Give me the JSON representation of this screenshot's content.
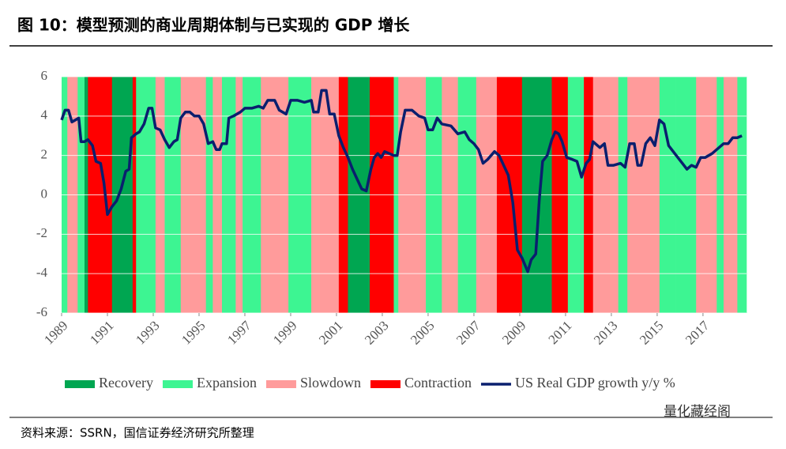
{
  "chart_data": {
    "type": "regime_line",
    "title": "图 10：模型预测的商业周期体制与已实现的 GDP 增长",
    "source": "资料来源：SSRN，国信证券经济研究所整理",
    "watermark": "量化藏经阁",
    "xlim": [
      1989,
      2018.9
    ],
    "xticks": [
      1989,
      1991,
      1993,
      1995,
      1997,
      1999,
      2001,
      2003,
      2005,
      2007,
      2009,
      2011,
      2013,
      2015,
      2017
    ],
    "ylim": [
      -6,
      6
    ],
    "yticks": [
      6,
      4,
      2,
      0,
      -2,
      -4,
      -6
    ],
    "grid": true,
    "regimes": [
      {
        "name": "Recovery",
        "color": "#00a651"
      },
      {
        "name": "Expansion",
        "color": "#3df592"
      },
      {
        "name": "Slowdown",
        "color": "#ff9b9b"
      },
      {
        "name": "Contraction",
        "color": "#ff0000"
      }
    ],
    "periods": [
      {
        "start": 1989.0,
        "end": 1989.25,
        "regime": "Expansion"
      },
      {
        "start": 1989.25,
        "end": 1989.7,
        "regime": "Slowdown"
      },
      {
        "start": 1989.7,
        "end": 1990.0,
        "regime": "Expansion"
      },
      {
        "start": 1990.0,
        "end": 1990.15,
        "regime": "Recovery"
      },
      {
        "start": 1990.15,
        "end": 1991.2,
        "regime": "Contraction"
      },
      {
        "start": 1991.2,
        "end": 1992.1,
        "regime": "Recovery"
      },
      {
        "start": 1992.1,
        "end": 1992.25,
        "regime": "Contraction"
      },
      {
        "start": 1992.25,
        "end": 1993.1,
        "regime": "Expansion"
      },
      {
        "start": 1993.1,
        "end": 1993.5,
        "regime": "Slowdown"
      },
      {
        "start": 1993.5,
        "end": 1994.2,
        "regime": "Expansion"
      },
      {
        "start": 1994.2,
        "end": 1995.3,
        "regime": "Slowdown"
      },
      {
        "start": 1995.3,
        "end": 1995.6,
        "regime": "Expansion"
      },
      {
        "start": 1995.6,
        "end": 1996.0,
        "regime": "Slowdown"
      },
      {
        "start": 1996.0,
        "end": 1996.6,
        "regime": "Expansion"
      },
      {
        "start": 1996.6,
        "end": 1996.9,
        "regime": "Slowdown"
      },
      {
        "start": 1996.9,
        "end": 1997.7,
        "regime": "Expansion"
      },
      {
        "start": 1997.7,
        "end": 1998.9,
        "regime": "Slowdown"
      },
      {
        "start": 1998.9,
        "end": 1999.9,
        "regime": "Expansion"
      },
      {
        "start": 1999.9,
        "end": 2001.1,
        "regime": "Slowdown"
      },
      {
        "start": 2001.1,
        "end": 2001.5,
        "regime": "Contraction"
      },
      {
        "start": 2001.5,
        "end": 2002.45,
        "regime": "Recovery"
      },
      {
        "start": 2002.45,
        "end": 2003.5,
        "regime": "Contraction"
      },
      {
        "start": 2003.5,
        "end": 2003.7,
        "regime": "Expansion"
      },
      {
        "start": 2003.7,
        "end": 2004.9,
        "regime": "Slowdown"
      },
      {
        "start": 2004.9,
        "end": 2005.6,
        "regime": "Expansion"
      },
      {
        "start": 2005.6,
        "end": 2006.3,
        "regime": "Slowdown"
      },
      {
        "start": 2006.3,
        "end": 2007.1,
        "regime": "Expansion"
      },
      {
        "start": 2007.1,
        "end": 2008.0,
        "regime": "Slowdown"
      },
      {
        "start": 2008.0,
        "end": 2009.1,
        "regime": "Contraction"
      },
      {
        "start": 2009.1,
        "end": 2010.4,
        "regime": "Recovery"
      },
      {
        "start": 2010.4,
        "end": 2011.1,
        "regime": "Contraction"
      },
      {
        "start": 2011.1,
        "end": 2011.8,
        "regime": "Expansion"
      },
      {
        "start": 2011.8,
        "end": 2012.2,
        "regime": "Contraction"
      },
      {
        "start": 2012.2,
        "end": 2013.3,
        "regime": "Slowdown"
      },
      {
        "start": 2013.3,
        "end": 2013.7,
        "regime": "Expansion"
      },
      {
        "start": 2013.7,
        "end": 2015.1,
        "regime": "Slowdown"
      },
      {
        "start": 2015.1,
        "end": 2015.8,
        "regime": "Expansion"
      },
      {
        "start": 2015.8,
        "end": 2016.7,
        "regime": "Expansion"
      },
      {
        "start": 2016.7,
        "end": 2017.6,
        "regime": "Slowdown"
      },
      {
        "start": 2017.6,
        "end": 2017.9,
        "regime": "Expansion"
      },
      {
        "start": 2017.9,
        "end": 2018.5,
        "regime": "Slowdown"
      },
      {
        "start": 2018.5,
        "end": 2018.9,
        "regime": "Expansion"
      }
    ],
    "series": [
      {
        "name": "US Real GDP growth y/y %",
        "color": "#0a1f6e",
        "x": [
          1989.0,
          1989.15,
          1989.3,
          1989.45,
          1989.6,
          1989.75,
          1989.85,
          1990.0,
          1990.15,
          1990.35,
          1990.5,
          1990.7,
          1990.85,
          1991.0,
          1991.2,
          1991.4,
          1991.6,
          1991.8,
          1991.95,
          1992.05,
          1992.25,
          1992.4,
          1992.6,
          1992.8,
          1992.95,
          1993.1,
          1993.3,
          1993.5,
          1993.7,
          1993.9,
          1994.05,
          1994.2,
          1994.4,
          1994.6,
          1994.8,
          1995.0,
          1995.2,
          1995.4,
          1995.6,
          1995.75,
          1995.9,
          1996.0,
          1996.2,
          1996.3,
          1996.5,
          1996.8,
          1997.0,
          1997.3,
          1997.6,
          1997.8,
          1998.0,
          1998.3,
          1998.5,
          1998.8,
          1999.0,
          1999.3,
          1999.6,
          1999.9,
          2000.0,
          2000.2,
          2000.35,
          2000.55,
          2000.7,
          2000.9,
          2001.1,
          2001.3,
          2001.5,
          2001.7,
          2001.9,
          2002.1,
          2002.3,
          2002.5,
          2002.65,
          2002.8,
          2002.95,
          2003.1,
          2003.3,
          2003.5,
          2003.65,
          2003.8,
          2004.0,
          2004.3,
          2004.6,
          2004.85,
          2005.0,
          2005.2,
          2005.4,
          2005.6,
          2006.0,
          2006.3,
          2006.6,
          2006.8,
          2007.0,
          2007.2,
          2007.4,
          2007.6,
          2007.9,
          2008.1,
          2008.3,
          2008.5,
          2008.7,
          2008.9,
          2009.1,
          2009.35,
          2009.5,
          2009.7,
          2009.85,
          2010.0,
          2010.2,
          2010.4,
          2010.55,
          2010.7,
          2010.85,
          2011.05,
          2011.3,
          2011.5,
          2011.7,
          2011.9,
          2012.05,
          2012.2,
          2012.5,
          2012.7,
          2012.85,
          2013.1,
          2013.4,
          2013.6,
          2013.8,
          2014.0,
          2014.15,
          2014.3,
          2014.5,
          2014.7,
          2014.9,
          2015.1,
          2015.3,
          2015.5,
          2015.7,
          2015.9,
          2016.1,
          2016.3,
          2016.5,
          2016.7,
          2016.9,
          2017.1,
          2017.4,
          2017.7,
          2017.9,
          2018.1,
          2018.3,
          2018.5,
          2018.7
        ],
        "values": [
          3.8,
          4.3,
          4.3,
          3.7,
          3.8,
          3.9,
          2.7,
          2.7,
          2.8,
          2.5,
          1.7,
          1.6,
          0.6,
          -1.0,
          -0.6,
          -0.3,
          0.3,
          1.2,
          1.3,
          2.9,
          3.1,
          3.2,
          3.6,
          4.4,
          4.4,
          3.4,
          3.3,
          2.8,
          2.4,
          2.7,
          2.8,
          3.9,
          4.2,
          4.2,
          4.0,
          4.0,
          3.6,
          2.6,
          2.7,
          2.3,
          2.3,
          2.6,
          2.6,
          3.9,
          4.0,
          4.2,
          4.4,
          4.4,
          4.5,
          4.4,
          4.8,
          4.8,
          4.3,
          4.1,
          4.8,
          4.8,
          4.7,
          4.8,
          4.2,
          4.2,
          5.3,
          5.3,
          4.1,
          4.1,
          3.0,
          2.4,
          1.9,
          1.3,
          0.8,
          0.3,
          0.2,
          1.3,
          1.9,
          2.1,
          1.9,
          2.2,
          2.1,
          2.0,
          2.0,
          3.2,
          4.3,
          4.3,
          4.0,
          3.9,
          3.3,
          3.3,
          3.9,
          3.6,
          3.5,
          3.1,
          3.2,
          2.8,
          2.6,
          2.3,
          1.6,
          1.8,
          2.2,
          2.0,
          1.5,
          1.0,
          -0.4,
          -2.8,
          -3.2,
          -3.9,
          -3.3,
          -3.0,
          -0.3,
          1.7,
          2.0,
          2.8,
          3.2,
          3.1,
          2.7,
          1.9,
          1.8,
          1.7,
          0.9,
          1.6,
          1.8,
          2.7,
          2.4,
          2.6,
          1.5,
          1.5,
          1.6,
          1.4,
          2.6,
          2.6,
          1.5,
          1.5,
          2.6,
          2.9,
          2.5,
          3.8,
          3.6,
          2.5,
          2.2,
          1.9,
          1.6,
          1.3,
          1.5,
          1.4,
          1.9,
          1.9,
          2.1,
          2.4,
          2.6,
          2.6,
          2.9,
          2.9,
          3.0
        ]
      }
    ]
  }
}
